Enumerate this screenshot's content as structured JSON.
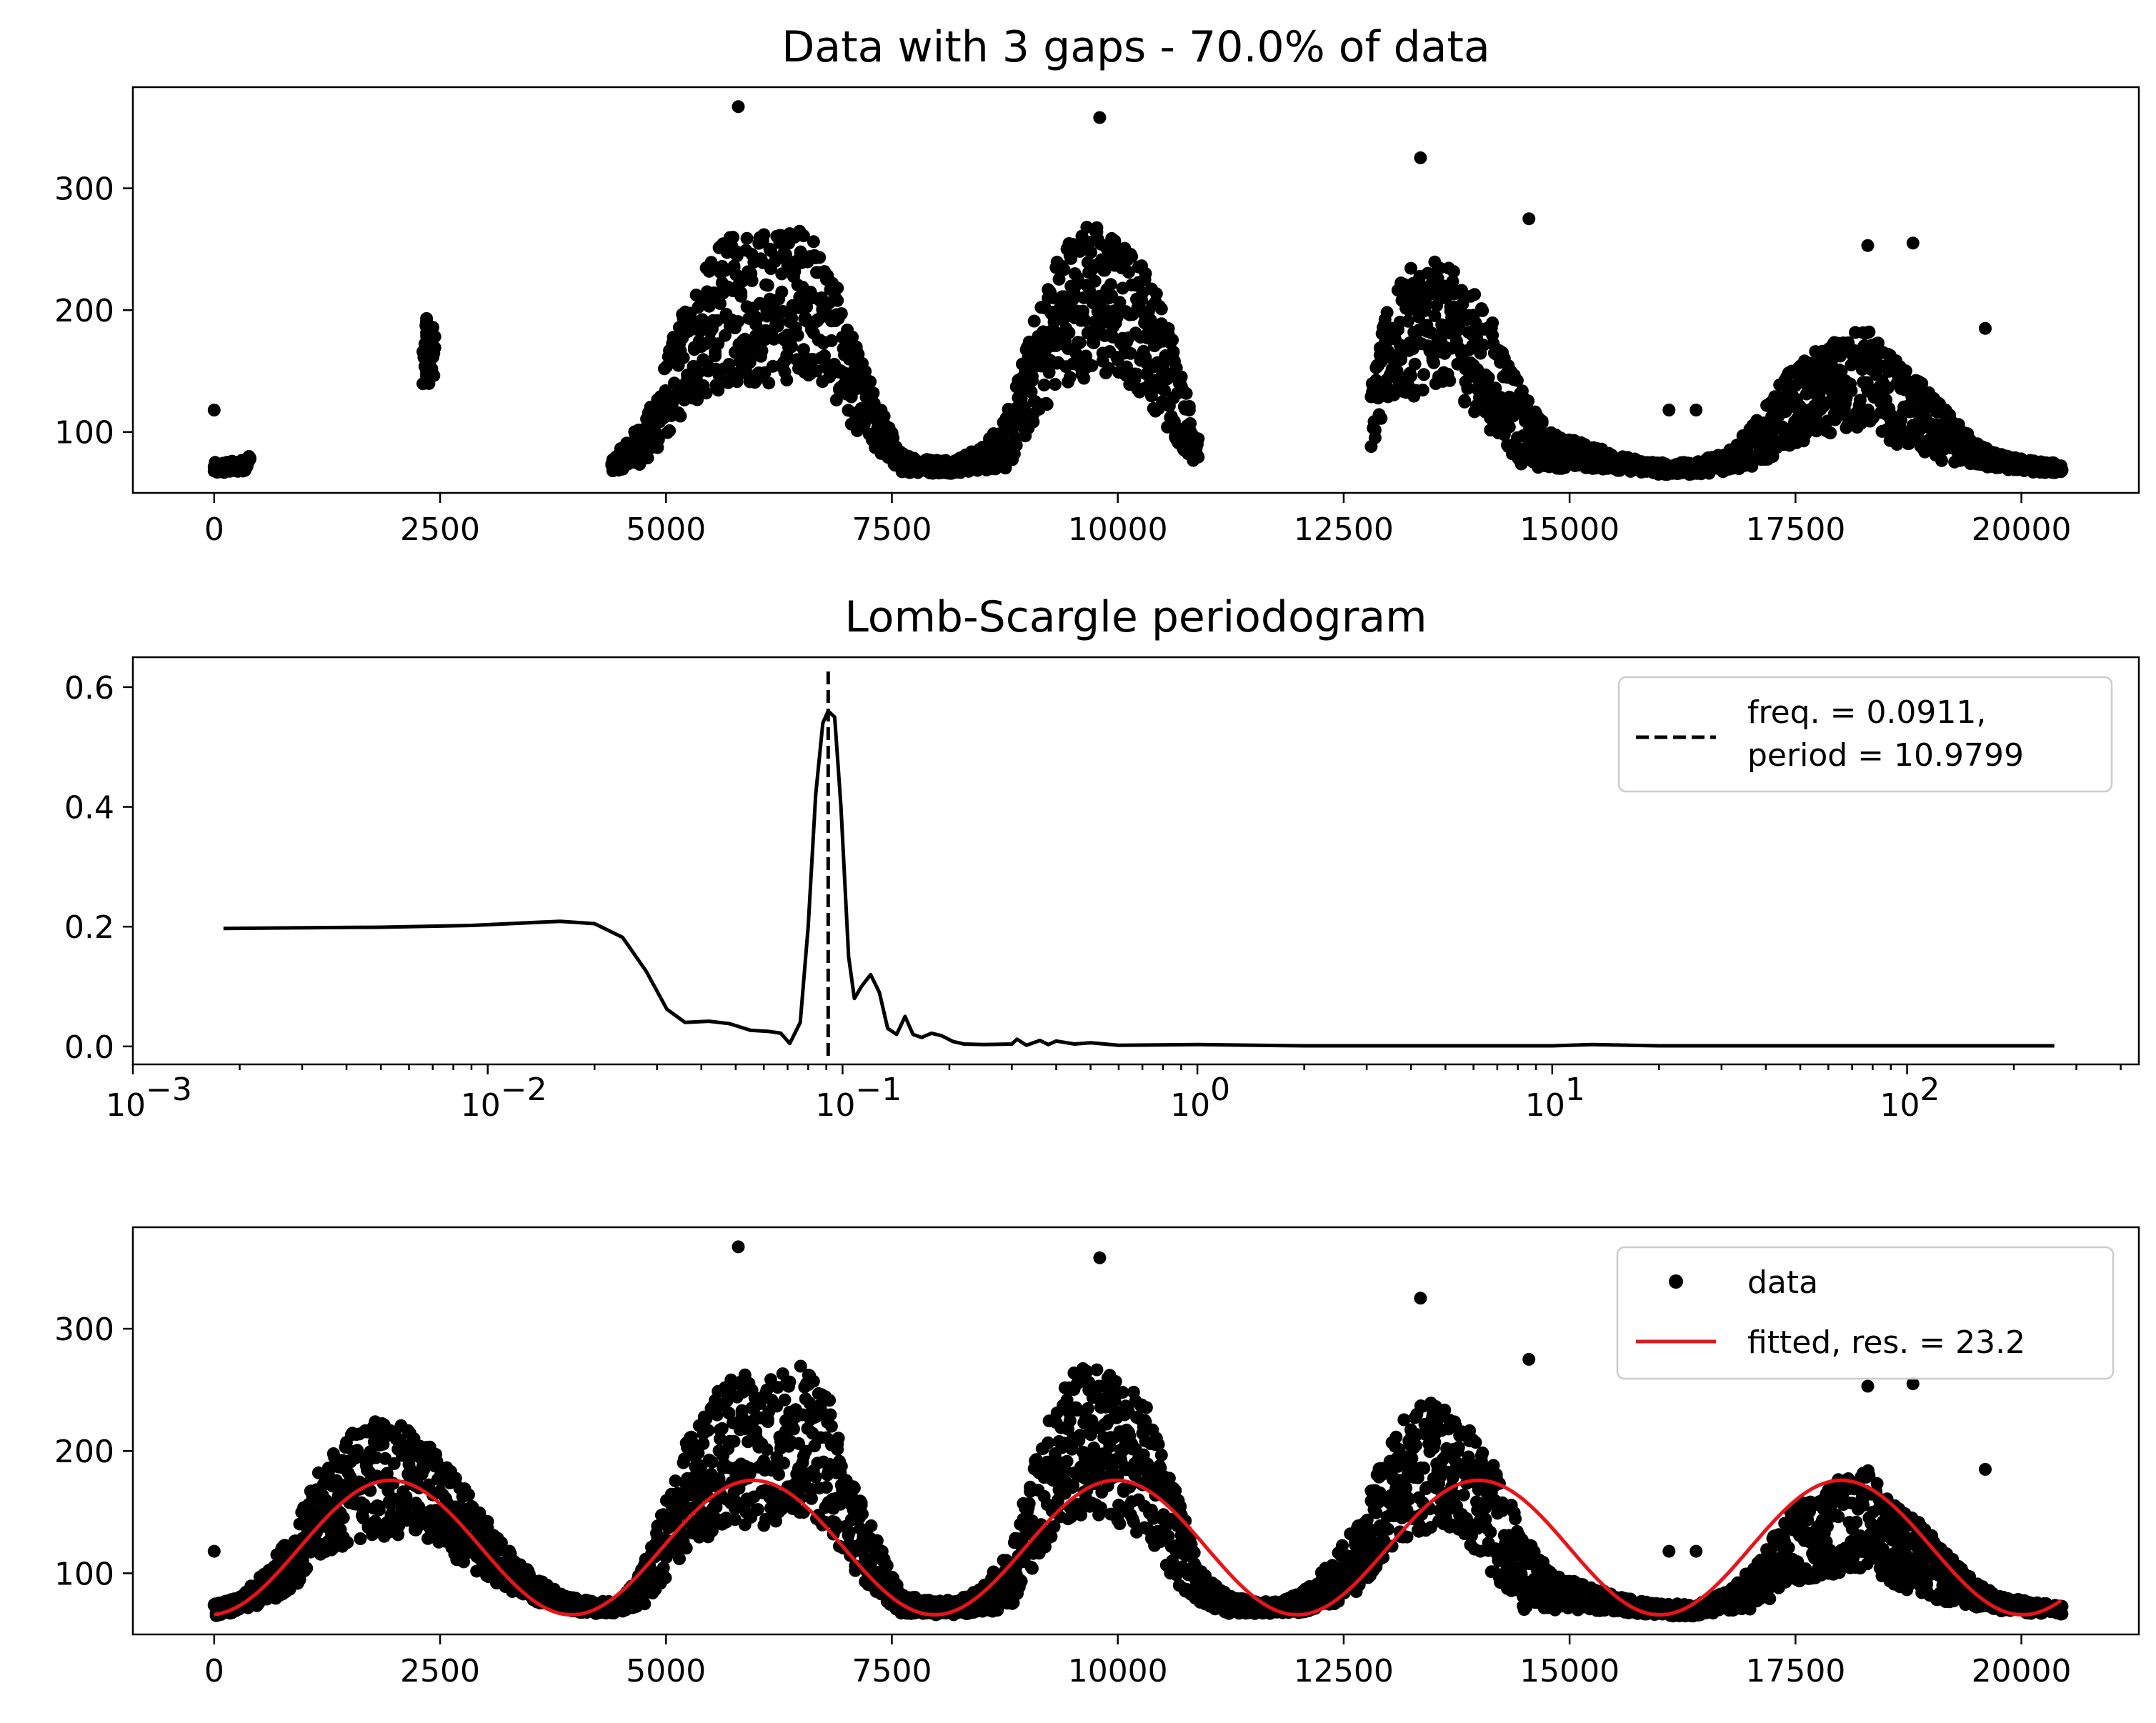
{
  "chart_data": [
    {
      "type": "scatter",
      "title": "Data with 3 gaps - 70.0% of data",
      "xlabel": "",
      "ylabel": "",
      "xlim": [
        -900,
        21300
      ],
      "ylim": [
        50,
        383
      ],
      "x_ticks": [
        "0",
        "2500",
        "5000",
        "7500",
        "10000",
        "12500",
        "15000",
        "17500",
        "20000"
      ],
      "x_tick_values": [
        0,
        2500,
        5000,
        7500,
        10000,
        12500,
        15000,
        17500,
        20000
      ],
      "y_ticks": [
        "100",
        "200",
        "300"
      ],
      "y_tick_values": [
        100,
        200,
        300
      ],
      "marker_color": "#000000",
      "gaps": [
        [
          400,
          2300
        ],
        [
          2450,
          4400
        ],
        [
          10900,
          12800
        ]
      ],
      "series": [
        {
          "style": "points",
          "x": [
            0,
            300,
            2350,
            4400,
            4800,
            5200,
            5600,
            5900,
            6200,
            6500,
            6800,
            7000,
            7300,
            7600,
            7900,
            8200,
            8500,
            8800,
            9100,
            9400,
            9700,
            10000,
            10300,
            10600,
            10850,
            12800,
            13000,
            13300,
            13600,
            13900,
            14200,
            14500,
            14800,
            15200,
            15600,
            16000,
            16400,
            16800,
            17100,
            17400,
            17700,
            18000,
            18300,
            18600,
            18900,
            19200,
            19500,
            19800,
            20100,
            20450
          ],
          "y": [
            70,
            72,
            165,
            72,
            95,
            160,
            195,
            205,
            200,
            210,
            190,
            150,
            110,
            75,
            72,
            72,
            78,
            95,
            155,
            200,
            210,
            200,
            185,
            140,
            90,
            110,
            165,
            185,
            190,
            170,
            140,
            100,
            85,
            80,
            74,
            70,
            70,
            78,
            92,
            118,
            130,
            140,
            145,
            125,
            110,
            95,
            82,
            75,
            72,
            70
          ],
          "spread": [
            5,
            5,
            25,
            5,
            20,
            45,
            60,
            65,
            65,
            60,
            55,
            40,
            25,
            8,
            6,
            6,
            10,
            25,
            45,
            60,
            65,
            60,
            55,
            45,
            15,
            25,
            45,
            55,
            50,
            50,
            45,
            30,
            15,
            10,
            6,
            5,
            5,
            10,
            20,
            30,
            35,
            40,
            40,
            35,
            30,
            20,
            10,
            6,
            5,
            4
          ],
          "outliers": [
            [
              0,
              118
            ],
            [
              5800,
              367
            ],
            [
              9800,
              358
            ],
            [
              10300,
              225
            ],
            [
              13350,
              325
            ],
            [
              14550,
              275
            ],
            [
              16100,
              118
            ],
            [
              16400,
              118
            ],
            [
              18300,
              253
            ],
            [
              18800,
              255
            ],
            [
              19600,
              185
            ]
          ]
        }
      ]
    },
    {
      "type": "line",
      "title": "Lomb-Scargle periodogram",
      "xlabel": "",
      "ylabel": "",
      "x_scale": "log",
      "xlim": [
        0.001,
        450
      ],
      "ylim": [
        -0.03,
        0.65
      ],
      "x_ticks": [
        "10",
        "10",
        "10",
        "10",
        "10",
        "10"
      ],
      "x_tick_exponents": [
        "−3",
        "−2",
        "−1",
        "0",
        "1",
        "2"
      ],
      "x_tick_values": [
        0.001,
        0.01,
        0.1,
        1,
        10,
        100
      ],
      "y_ticks": [
        "0.0",
        "0.2",
        "0.4",
        "0.6"
      ],
      "y_tick_values": [
        0,
        0.2,
        0.4,
        0.6
      ],
      "line_color": "#000000",
      "x": [
        0.0018,
        0.005,
        0.009,
        0.016,
        0.02,
        0.024,
        0.028,
        0.032,
        0.036,
        0.042,
        0.048,
        0.055,
        0.062,
        0.067,
        0.071,
        0.076,
        0.08,
        0.084,
        0.088,
        0.0911,
        0.095,
        0.099,
        0.104,
        0.108,
        0.113,
        0.12,
        0.127,
        0.134,
        0.142,
        0.15,
        0.158,
        0.167,
        0.178,
        0.19,
        0.205,
        0.22,
        0.25,
        0.3,
        0.31,
        0.33,
        0.36,
        0.38,
        0.4,
        0.45,
        0.5,
        0.6,
        1,
        2,
        5,
        10,
        13,
        20,
        50,
        100,
        260
      ],
      "y": [
        0.197,
        0.199,
        0.202,
        0.209,
        0.205,
        0.182,
        0.125,
        0.062,
        0.04,
        0.042,
        0.038,
        0.027,
        0.025,
        0.022,
        0.005,
        0.04,
        0.2,
        0.42,
        0.54,
        0.56,
        0.55,
        0.4,
        0.15,
        0.08,
        0.1,
        0.12,
        0.09,
        0.03,
        0.02,
        0.05,
        0.02,
        0.015,
        0.022,
        0.018,
        0.008,
        0.004,
        0.003,
        0.004,
        0.012,
        0.002,
        0.01,
        0.003,
        0.009,
        0.004,
        0.006,
        0.002,
        0.003,
        0.001,
        0.001,
        0.001,
        0.003,
        0.001,
        0.001,
        0.001,
        0.001
      ],
      "vline": {
        "x": 0.0911,
        "style": "dashed",
        "color": "#000000"
      },
      "legend": {
        "placement": "top-right",
        "entries": [
          {
            "label_line1": "freq. = 0.0911,",
            "label_line2": "period = 10.9799",
            "style": "dashed"
          }
        ]
      }
    },
    {
      "type": "scatter",
      "title": "",
      "xlabel": "",
      "ylabel": "",
      "xlim": [
        -900,
        21300
      ],
      "ylim": [
        50,
        383
      ],
      "x_ticks": [
        "0",
        "2500",
        "5000",
        "7500",
        "10000",
        "12500",
        "15000",
        "17500",
        "20000"
      ],
      "x_tick_values": [
        0,
        2500,
        5000,
        7500,
        10000,
        12500,
        15000,
        17500,
        20000
      ],
      "y_ticks": [
        "100",
        "200",
        "300"
      ],
      "y_tick_values": [
        100,
        200,
        300
      ],
      "marker_color": "#000000",
      "fit_color": "#e8141a",
      "series": [
        {
          "name": "data",
          "style": "points",
          "x": [
            0,
            300,
            600,
            900,
            1200,
            1500,
            1800,
            2100,
            2400,
            2700,
            3000,
            3300,
            3600,
            3900,
            4200,
            4500,
            4800,
            5200,
            5600,
            5900,
            6200,
            6500,
            6800,
            7000,
            7300,
            7600,
            7900,
            8200,
            8500,
            8800,
            9100,
            9400,
            9700,
            10000,
            10300,
            10600,
            10900,
            11200,
            11500,
            11800,
            12100,
            12400,
            12700,
            13000,
            13300,
            13600,
            13900,
            14200,
            14500,
            14800,
            15200,
            15600,
            16000,
            16400,
            16800,
            17100,
            17400,
            17700,
            18000,
            18300,
            18600,
            18900,
            19200,
            19500,
            19800,
            20100,
            20450
          ],
          "y": [
            70,
            75,
            90,
            115,
            150,
            170,
            180,
            175,
            165,
            145,
            120,
            100,
            85,
            75,
            72,
            72,
            95,
            160,
            195,
            205,
            200,
            210,
            190,
            150,
            110,
            75,
            72,
            72,
            78,
            95,
            155,
            200,
            210,
            200,
            185,
            140,
            90,
            75,
            72,
            72,
            78,
            95,
            115,
            165,
            185,
            190,
            170,
            140,
            100,
            85,
            80,
            74,
            70,
            70,
            78,
            92,
            118,
            130,
            140,
            145,
            125,
            110,
            95,
            82,
            75,
            72,
            70
          ],
          "spread": [
            5,
            6,
            15,
            25,
            40,
            45,
            50,
            45,
            40,
            35,
            25,
            15,
            10,
            6,
            5,
            5,
            20,
            45,
            60,
            65,
            65,
            60,
            55,
            40,
            25,
            8,
            6,
            6,
            10,
            25,
            45,
            60,
            65,
            60,
            55,
            45,
            15,
            8,
            5,
            5,
            10,
            20,
            30,
            45,
            55,
            50,
            50,
            45,
            30,
            15,
            10,
            6,
            5,
            5,
            10,
            20,
            30,
            35,
            40,
            40,
            35,
            30,
            20,
            10,
            6,
            5,
            4
          ],
          "outliers": [
            [
              0,
              118
            ],
            [
              5800,
              367
            ],
            [
              9800,
              358
            ],
            [
              10300,
              225
            ],
            [
              13350,
              325
            ],
            [
              14550,
              275
            ],
            [
              16100,
              118
            ],
            [
              16400,
              118
            ],
            [
              18300,
              253
            ],
            [
              18800,
              255
            ],
            [
              19600,
              185
            ]
          ]
        },
        {
          "name": "fitted, res. = 23.2",
          "style": "line",
          "function": "sine",
          "offset": 121,
          "amplitude": 55,
          "period": 4014,
          "peak_x": 1950,
          "x_range": [
            0,
            20450
          ]
        }
      ],
      "legend": {
        "placement": "top-right",
        "entries": [
          {
            "label": "data",
            "style": "point"
          },
          {
            "label": "fitted, res. = 23.2",
            "style": "line"
          }
        ]
      }
    }
  ]
}
